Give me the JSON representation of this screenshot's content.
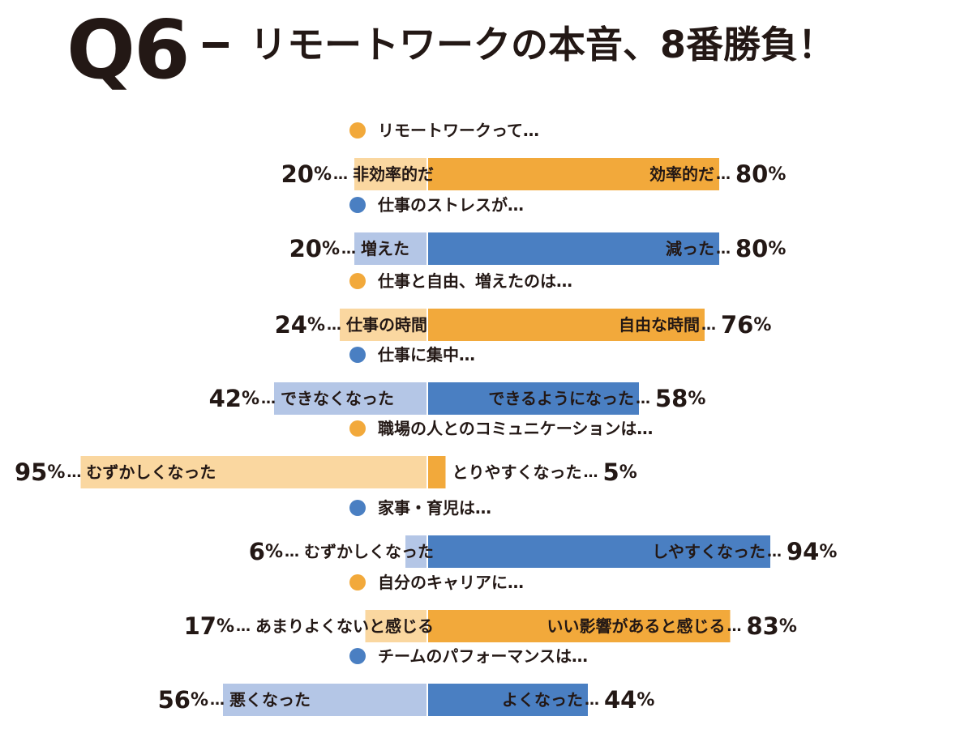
{
  "title": {
    "q": "Q6",
    "text": "リモートワークの本音、8番勝負！"
  },
  "colors": {
    "orange": "#F2A93B",
    "orange_light": "#FAD7A0",
    "blue": "#4A7FC2",
    "blue_light": "#B4C6E6",
    "text": "#231815"
  },
  "chart_data": {
    "type": "bar",
    "orientation": "horizontal-diverging",
    "unit": "%",
    "items": [
      {
        "question": "リモートワークって…",
        "color": "orange",
        "left_label": "非効率的だ",
        "left_value": 20,
        "right_label": "効率的だ",
        "right_value": 80
      },
      {
        "question": "仕事のストレスが…",
        "color": "blue",
        "left_label": "増えた",
        "left_value": 20,
        "right_label": "減った",
        "right_value": 80
      },
      {
        "question": "仕事と自由、増えたのは…",
        "color": "orange",
        "left_label": "仕事の時間",
        "left_value": 24,
        "right_label": "自由な時間",
        "right_value": 76
      },
      {
        "question": "仕事に集中…",
        "color": "blue",
        "left_label": "できなくなった",
        "left_value": 42,
        "right_label": "できるようになった",
        "right_value": 58
      },
      {
        "question": "職場の人とのコミュニケーションは…",
        "color": "orange",
        "left_label": "むずかしくなった",
        "left_value": 95,
        "right_label": "とりやすくなった",
        "right_value": 5
      },
      {
        "question": "家事・育児は…",
        "color": "blue",
        "left_label": "むずかしくなった",
        "left_value": 6,
        "right_label": "しやすくなった",
        "right_value": 94
      },
      {
        "question": "自分のキャリアに…",
        "color": "orange",
        "left_label": "あまりよくないと感じる",
        "left_value": 17,
        "right_label": "いい影響があると感じる",
        "right_value": 83
      },
      {
        "question": "チームのパフォーマンスは…",
        "color": "blue",
        "left_label": "悪くなった",
        "left_value": 56,
        "right_label": "よくなった",
        "right_value": 44
      }
    ]
  }
}
